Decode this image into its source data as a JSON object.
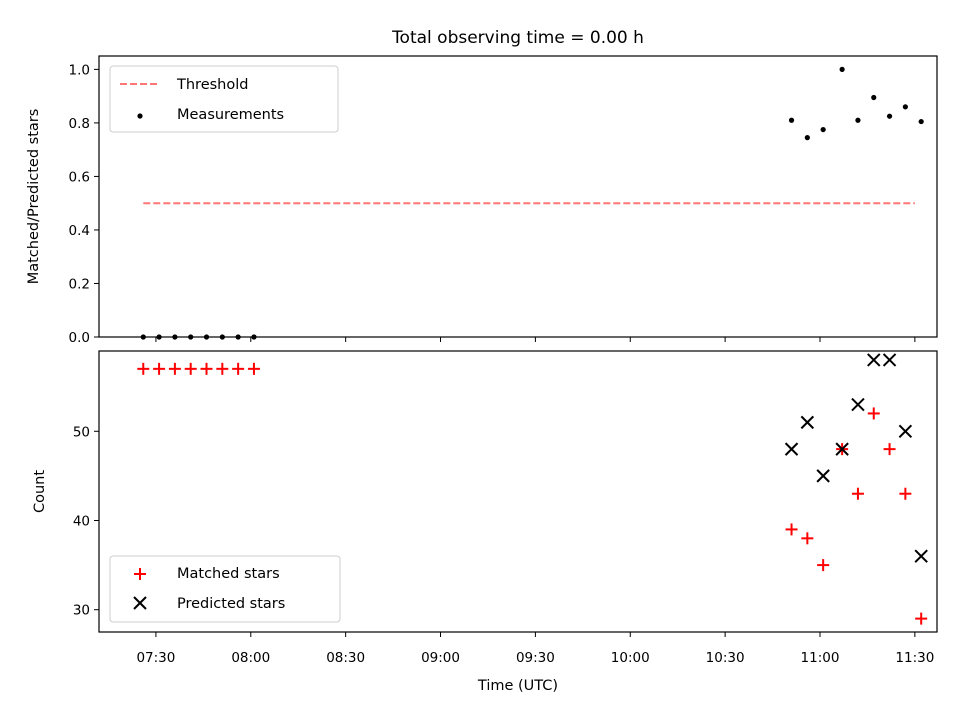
{
  "chart_data": [
    {
      "type": "scatter",
      "title": "Total observing time = 0.00 h",
      "ylabel": "Matched/Predicted stars",
      "xlabel": "",
      "ylim": [
        0.0,
        1.05
      ],
      "xlim": [
        "07:12",
        "11:37"
      ],
      "yticks": [
        "0.0",
        "0.2",
        "0.4",
        "0.6",
        "0.8",
        "1.0"
      ],
      "grid": false,
      "legend_loc": "upper-left",
      "threshold": {
        "name": "Threshold",
        "value": 0.5,
        "x_range": [
          "07:26",
          "11:30"
        ],
        "color": "#ff7777",
        "style": "dashed"
      },
      "series": [
        {
          "name": "Measurements",
          "marker": "dot",
          "color": "#000000",
          "x": [
            "07:26",
            "07:31",
            "07:36",
            "07:41",
            "07:46",
            "07:51",
            "07:56",
            "08:01",
            "10:51",
            "10:56",
            "11:01",
            "11:07",
            "11:12",
            "11:17",
            "11:22",
            "11:27",
            "11:32"
          ],
          "y": [
            0.0,
            0.0,
            0.0,
            0.0,
            0.0,
            0.0,
            0.0,
            0.0,
            0.81,
            0.745,
            0.775,
            1.0,
            0.81,
            0.895,
            0.825,
            0.86,
            0.805
          ]
        }
      ]
    },
    {
      "type": "scatter",
      "title": "",
      "ylabel": "Count",
      "xlabel": "Time (UTC)",
      "ylim": [
        27.5,
        59
      ],
      "xlim": [
        "07:12",
        "11:37"
      ],
      "yticks": [
        "30",
        "40",
        "50"
      ],
      "xticks": [
        "07:30",
        "08:00",
        "08:30",
        "09:00",
        "09:30",
        "10:00",
        "10:30",
        "11:00",
        "11:30"
      ],
      "grid": false,
      "legend_loc": "lower-left",
      "series": [
        {
          "name": "Matched stars",
          "marker": "plus",
          "color": "#ff0000",
          "x": [
            "07:26",
            "07:31",
            "07:36",
            "07:41",
            "07:46",
            "07:51",
            "07:56",
            "08:01",
            "10:51",
            "10:56",
            "11:01",
            "11:07",
            "11:12",
            "11:17",
            "11:22",
            "11:27",
            "11:32"
          ],
          "y": [
            57,
            57,
            57,
            57,
            57,
            57,
            57,
            57,
            39,
            38,
            35,
            48,
            43,
            52,
            48,
            43,
            29
          ]
        },
        {
          "name": "Predicted stars",
          "marker": "x",
          "color": "#000000",
          "x": [
            "10:51",
            "10:56",
            "11:01",
            "11:07",
            "11:12",
            "11:17",
            "11:22",
            "11:27",
            "11:32"
          ],
          "y": [
            48,
            51,
            45,
            48,
            53,
            58,
            58,
            50,
            36
          ]
        }
      ]
    }
  ]
}
